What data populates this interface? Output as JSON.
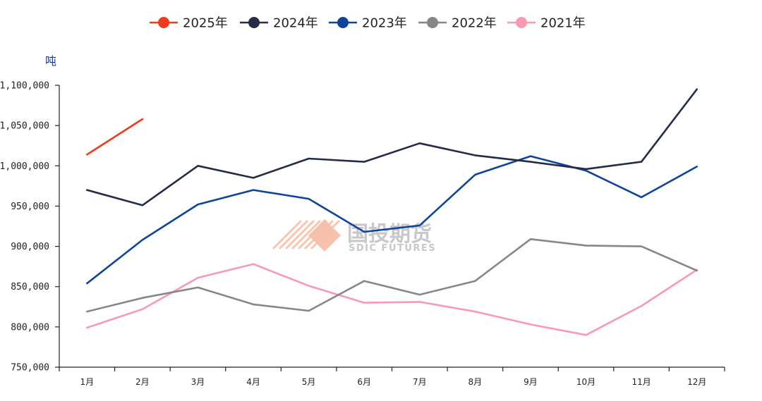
{
  "chart_data": {
    "type": "line",
    "title": "",
    "xlabel": "",
    "ylabel": "吨",
    "categories": [
      "1月",
      "2月",
      "3月",
      "4月",
      "5月",
      "6月",
      "7月",
      "8月",
      "9月",
      "10月",
      "11月",
      "12月"
    ],
    "ylim": [
      750000,
      1100000
    ],
    "yticks": [
      750000,
      800000,
      850000,
      900000,
      950000,
      1000000,
      1050000,
      1100000
    ],
    "ytick_labels": [
      "750,000",
      "800,000",
      "850,000",
      "900,000",
      "950,000",
      "1,000,000",
      "1,050,000",
      "1,100,000"
    ],
    "grid": false,
    "legend_position": "top-center",
    "series": [
      {
        "name": "2025年",
        "color": "#f03c1e",
        "values": [
          1014000,
          1058000,
          null,
          null,
          null,
          null,
          null,
          null,
          null,
          null,
          null,
          null
        ]
      },
      {
        "name": "2024年",
        "color": "#262b47",
        "values": [
          970000,
          951000,
          1000000,
          985000,
          1009000,
          1005000,
          1028000,
          1013000,
          1005000,
          996000,
          1005000,
          1095000
        ]
      },
      {
        "name": "2023年",
        "color": "#0f4498",
        "values": [
          854000,
          908000,
          952000,
          970000,
          959000,
          918000,
          926000,
          989000,
          1012000,
          994000,
          961000,
          999000
        ]
      },
      {
        "name": "2022年",
        "color": "#878787",
        "values": [
          819000,
          836000,
          849000,
          828000,
          820000,
          857000,
          840000,
          857000,
          909000,
          901000,
          900000,
          870000
        ]
      },
      {
        "name": "2021年",
        "color": "#f99ab3",
        "values": [
          799000,
          822000,
          861000,
          878000,
          851000,
          830000,
          831000,
          819000,
          803000,
          790000,
          826000,
          871000
        ]
      }
    ]
  },
  "watermark": {
    "cn": "国投期货",
    "en": "SDIC FUTURES",
    "logo_color": "#f7bfa8"
  },
  "axis_color": "#222222"
}
